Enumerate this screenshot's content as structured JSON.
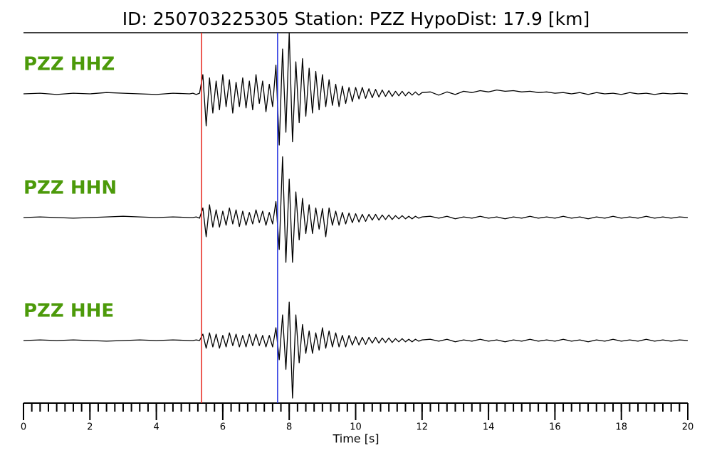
{
  "chart_data": {
    "type": "line",
    "title": "ID: 250703225305   Station: PZZ   HypoDist:    17.9 [km]",
    "xlabel": "Time [s]",
    "xlim": [
      0,
      20
    ],
    "xticks": [
      0,
      2,
      4,
      6,
      8,
      10,
      12,
      14,
      16,
      18,
      20
    ],
    "xminor_step": 0.25,
    "ylim": [
      -1,
      1
    ],
    "label_color": "#4c9a0a",
    "markers": [
      {
        "x": 5.36,
        "color": "#e8241c"
      },
      {
        "x": 7.65,
        "color": "#2432e0"
      }
    ],
    "x": [
      0,
      0.5,
      1,
      1.5,
      2,
      2.5,
      3,
      3.5,
      4,
      4.5,
      5,
      5.1,
      5.2,
      5.3,
      5.4,
      5.5,
      5.6,
      5.7,
      5.8,
      5.9,
      6,
      6.1,
      6.2,
      6.3,
      6.4,
      6.5,
      6.6,
      6.7,
      6.8,
      6.9,
      7,
      7.1,
      7.2,
      7.3,
      7.4,
      7.5,
      7.6,
      7.7,
      7.8,
      7.9,
      8,
      8.1,
      8.2,
      8.3,
      8.4,
      8.5,
      8.6,
      8.7,
      8.8,
      8.9,
      9,
      9.1,
      9.2,
      9.3,
      9.4,
      9.5,
      9.6,
      9.7,
      9.8,
      9.9,
      10,
      10.1,
      10.2,
      10.3,
      10.4,
      10.5,
      10.6,
      10.7,
      10.8,
      10.9,
      11,
      11.1,
      11.2,
      11.3,
      11.4,
      11.5,
      11.6,
      11.7,
      11.8,
      11.9,
      12,
      12.25,
      12.5,
      12.75,
      13,
      13.25,
      13.5,
      13.75,
      14,
      14.25,
      14.5,
      14.75,
      15,
      15.25,
      15.5,
      15.75,
      16,
      16.25,
      16.5,
      16.75,
      17,
      17.25,
      17.5,
      17.75,
      18,
      18.25,
      18.5,
      18.75,
      19,
      19.25,
      19.5,
      19.75,
      20
    ],
    "series": [
      {
        "name": "PZZ HHZ",
        "color": "#000000",
        "values": [
          0,
          0.01,
          -0.01,
          0.01,
          0,
          0.02,
          0.01,
          0,
          -0.01,
          0.01,
          0,
          0.01,
          -0.01,
          0.01,
          0.3,
          -0.5,
          0.25,
          -0.3,
          0.2,
          -0.25,
          0.3,
          -0.2,
          0.22,
          -0.3,
          0.18,
          -0.2,
          0.25,
          -0.22,
          0.2,
          -0.25,
          0.3,
          -0.15,
          0.2,
          -0.28,
          0.15,
          -0.2,
          0.45,
          -0.8,
          0.7,
          -0.6,
          0.95,
          -0.75,
          0.5,
          -0.45,
          0.55,
          -0.35,
          0.4,
          -0.3,
          0.35,
          -0.25,
          0.3,
          -0.2,
          0.22,
          -0.18,
          0.15,
          -0.2,
          0.12,
          -0.15,
          0.1,
          -0.12,
          0.1,
          -0.08,
          0.1,
          -0.07,
          0.08,
          -0.06,
          0.07,
          -0.05,
          0.06,
          -0.04,
          0.05,
          -0.04,
          0.04,
          -0.03,
          0.04,
          -0.03,
          0.03,
          -0.02,
          0.03,
          -0.02,
          0.02,
          0.03,
          -0.02,
          0.03,
          -0.01,
          0.04,
          0.02,
          0.05,
          0.03,
          0.06,
          0.04,
          0.05,
          0.03,
          0.04,
          0.02,
          0.03,
          0.01,
          0.02,
          0,
          0.02,
          -0.01,
          0.02,
          0,
          0.01,
          -0.01,
          0.02,
          0,
          0.01,
          -0.01,
          0.01,
          0,
          0.01,
          0
        ]
      },
      {
        "name": "PZZ HHN",
        "color": "#000000",
        "values": [
          0,
          0.01,
          0,
          -0.01,
          0,
          0.01,
          0.02,
          0.01,
          0,
          0.01,
          0,
          0,
          0.01,
          -0.01,
          0.15,
          -0.3,
          0.2,
          -0.15,
          0.12,
          -0.15,
          0.1,
          -0.12,
          0.15,
          -0.1,
          0.12,
          -0.14,
          0.1,
          -0.12,
          0.08,
          -0.1,
          0.12,
          -0.08,
          0.1,
          -0.12,
          0.08,
          -0.1,
          0.25,
          -0.5,
          0.95,
          -0.7,
          0.6,
          -0.7,
          0.4,
          -0.35,
          0.3,
          -0.25,
          0.2,
          -0.25,
          0.15,
          -0.18,
          0.14,
          -0.3,
          0.15,
          -0.12,
          0.1,
          -0.12,
          0.08,
          -0.1,
          0.07,
          -0.08,
          0.06,
          -0.07,
          0.05,
          -0.06,
          0.05,
          -0.04,
          0.05,
          -0.04,
          0.04,
          -0.03,
          0.04,
          -0.03,
          0.03,
          -0.02,
          0.03,
          -0.02,
          0.02,
          -0.02,
          0.02,
          -0.01,
          0.01,
          0.02,
          -0.01,
          0.02,
          -0.02,
          0.01,
          -0.01,
          0.02,
          -0.01,
          0.01,
          -0.02,
          0.01,
          -0.01,
          0.02,
          -0.01,
          0.01,
          -0.01,
          0.02,
          -0.01,
          0.01,
          -0.02,
          0.01,
          -0.01,
          0.02,
          -0.01,
          0.01,
          -0.01,
          0.02,
          -0.01,
          0.01,
          -0.01,
          0.01,
          0
        ]
      },
      {
        "name": "PZZ HHE",
        "color": "#000000",
        "values": [
          0,
          0.01,
          0,
          0.01,
          0,
          -0.01,
          0,
          0.01,
          0,
          0.01,
          0,
          0,
          0.01,
          0,
          0.1,
          -0.12,
          0.12,
          -0.1,
          0.1,
          -0.12,
          0.08,
          -0.1,
          0.12,
          -0.08,
          0.1,
          -0.1,
          0.08,
          -0.1,
          0.1,
          -0.08,
          0.1,
          -0.08,
          0.08,
          -0.1,
          0.08,
          -0.1,
          0.2,
          -0.3,
          0.4,
          -0.45,
          0.6,
          -0.9,
          0.4,
          -0.35,
          0.25,
          -0.2,
          0.15,
          -0.2,
          0.12,
          -0.15,
          0.2,
          -0.12,
          0.15,
          -0.1,
          0.12,
          -0.1,
          0.08,
          -0.1,
          0.08,
          -0.07,
          0.06,
          -0.07,
          0.05,
          -0.06,
          0.05,
          -0.04,
          0.05,
          -0.04,
          0.04,
          -0.03,
          0.04,
          -0.03,
          0.03,
          -0.02,
          0.03,
          -0.02,
          0.02,
          -0.02,
          0.02,
          -0.01,
          0.01,
          0.02,
          -0.01,
          0.02,
          -0.02,
          0.01,
          -0.01,
          0.02,
          -0.01,
          0.01,
          -0.02,
          0.01,
          -0.01,
          0.02,
          -0.01,
          0.01,
          -0.01,
          0.02,
          -0.01,
          0.01,
          -0.02,
          0.01,
          -0.01,
          0.02,
          -0.01,
          0.01,
          -0.01,
          0.02,
          -0.01,
          0.01,
          -0.01,
          0.01,
          0
        ]
      }
    ]
  }
}
